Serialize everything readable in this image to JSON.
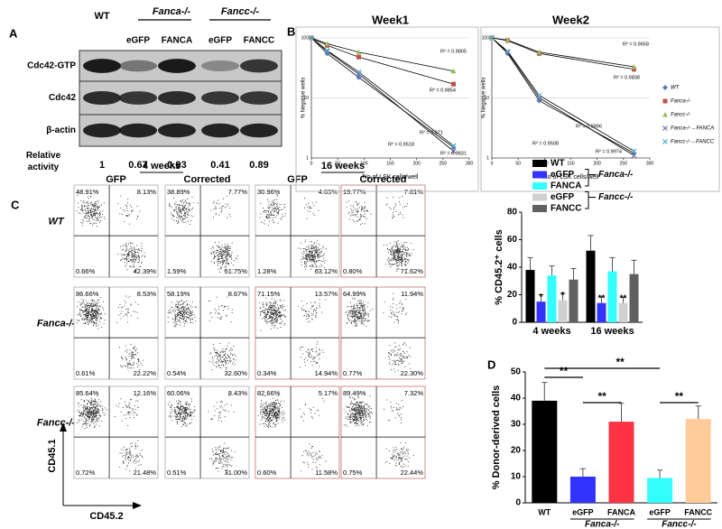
{
  "panel_labels": [
    "A",
    "B",
    "C",
    "D"
  ],
  "blot": {
    "columns": [
      "WT",
      "eGFP",
      "FANCA",
      "eGFP",
      "FANCC"
    ],
    "groups": [
      "Fanca-/-",
      "Fancc-/-"
    ],
    "rows": [
      "Cdc42-GTP",
      "Cdc42",
      "β-actin"
    ],
    "activity_label": "Relative activity",
    "activity": [
      1,
      0.67,
      0.93,
      0.41,
      0.89
    ]
  },
  "flow": {
    "time_points": [
      "4 weeks",
      "16 weeks"
    ],
    "columns": [
      "GFP",
      "Corrected",
      "GFP",
      "Corrected"
    ],
    "y_axis": "CD45.1",
    "x_axis": "CD45.2",
    "rows": [
      {
        "label": "WT",
        "cells": [
          [
            "48.91%",
            "8.13%",
            "0.66%",
            "42.39%"
          ],
          [
            "38.89%",
            "7.77%",
            "1.59%",
            "51.75%"
          ],
          [
            "30.96%",
            "4.65%",
            "1.28%",
            "63.12%"
          ],
          [
            "19.77%",
            "7.81%",
            "0.80%",
            "71.62%"
          ]
        ]
      },
      {
        "label": "Fanca-/-",
        "cells": [
          [
            "86.66%",
            "8.53%",
            "0.61%",
            "22.22%"
          ],
          [
            "58.19%",
            "8.67%",
            "0.54%",
            "32.60%"
          ],
          [
            "71.15%",
            "13.57%",
            "0.34%",
            "14.94%"
          ],
          [
            "64.99%",
            "11.94%",
            "0.77%",
            "22.30%"
          ]
        ]
      },
      {
        "label": "Fancc-/-",
        "cells": [
          [
            "85.64%",
            "12.16%",
            "0.72%",
            "21.48%"
          ],
          [
            "60.06%",
            "8.43%",
            "0.51%",
            "31.00%"
          ],
          [
            "82.66%",
            "5.17%",
            "0.60%",
            "11.58%"
          ],
          [
            "89.49%",
            "7.32%",
            "0.75%",
            "22.44%"
          ]
        ]
      }
    ]
  },
  "chart_data": [
    {
      "type": "line",
      "title": "Week1",
      "xlabel": "No of LSK cells/well",
      "ylabel": "% Negative wells",
      "log_y": true,
      "line_color": "#000000",
      "x": [
        0,
        30,
        90,
        270
      ],
      "xlim": [
        0,
        300
      ],
      "xticks": [
        0,
        50,
        100,
        150,
        200,
        250,
        300
      ],
      "ylim": [
        1,
        100
      ],
      "yticks": [
        1,
        10,
        100
      ],
      "series": [
        {
          "color": "#4f81bd",
          "marker": "diamond",
          "values": [
            100,
            55,
            22,
            1.5
          ]
        },
        {
          "color": "#c0504d",
          "marker": "square",
          "values": [
            100,
            75,
            48,
            17
          ]
        },
        {
          "color": "#9bbb59",
          "marker": "triangle",
          "values": [
            100,
            80,
            58,
            28
          ]
        },
        {
          "color": "#8064a2",
          "marker": "x",
          "values": [
            100,
            60,
            25,
            1.3
          ]
        },
        {
          "color": "#4bacc6",
          "marker": "x",
          "values": [
            100,
            62,
            27,
            1.6
          ]
        }
      ],
      "annotations": [
        "R² = 0.9805",
        "R² = 0.9854",
        "R² = 0.971",
        "R² = 0.9831",
        "R² = 0.9518"
      ]
    },
    {
      "type": "line",
      "title": "Week2",
      "xlabel": "No of LSK cells/well",
      "ylabel": "% Negative wells",
      "log_y": true,
      "line_color": "#000000",
      "legend": "right",
      "x": [
        0,
        30,
        90,
        270
      ],
      "xlim": [
        0,
        300
      ],
      "xticks": [
        0,
        50,
        100,
        150,
        200,
        250,
        300
      ],
      "ylim": [
        1,
        100
      ],
      "yticks": [
        1,
        10,
        100
      ],
      "series": [
        {
          "name": "WT",
          "color": "#4f81bd",
          "marker": "diamond",
          "values": [
            100,
            55,
            9,
            1.2
          ]
        },
        {
          "name": "Fanca-/-",
          "color": "#c0504d",
          "marker": "square",
          "values": [
            100,
            90,
            55,
            30
          ]
        },
        {
          "name": "Fancc-/-",
          "color": "#9bbb59",
          "marker": "triangle",
          "values": [
            100,
            92,
            58,
            33
          ]
        },
        {
          "name": "Fanca-/-→FANCA",
          "color": "#8064a2",
          "marker": "x",
          "values": [
            100,
            58,
            10,
            1.1
          ]
        },
        {
          "name": "Fancc-/-→FANCC",
          "color": "#4bacc6",
          "marker": "x",
          "values": [
            100,
            60,
            11,
            1.3
          ]
        }
      ],
      "annotations": [
        "R² = 0.9658",
        "R² = 0.9838",
        "R² = 0.9996",
        "R² = 0.9974",
        "R² = 0.9508"
      ]
    },
    {
      "type": "bar",
      "ylabel": "% CD45.2⁺ cells",
      "categories": [
        "4 weeks",
        "16 weeks"
      ],
      "ylim": [
        0,
        80
      ],
      "yticks": [
        0,
        20,
        40,
        60,
        80
      ],
      "legend_groups": [
        "Fanca-/-",
        "Fancc-/-"
      ],
      "series": [
        {
          "name": "WT",
          "color": "#000000",
          "values": [
            38,
            52
          ],
          "errors": [
            9,
            11
          ]
        },
        {
          "name": "eGFP",
          "color": "#3333ff",
          "values": [
            15,
            14
          ],
          "errors": [
            5,
            5
          ],
          "stars": [
            "*",
            "**"
          ]
        },
        {
          "name": "FANCA",
          "color": "#33ffff",
          "values": [
            34,
            37
          ],
          "errors": [
            7,
            10
          ]
        },
        {
          "name": "eGFP",
          "color": "#d0d0d0",
          "values": [
            16,
            14
          ],
          "errors": [
            5,
            4
          ],
          "stars": [
            "*",
            "**"
          ]
        },
        {
          "name": "FANCC",
          "color": "#606060",
          "values": [
            31,
            35
          ],
          "errors": [
            8,
            10
          ]
        }
      ]
    },
    {
      "type": "bar",
      "ylabel": "% Donor-derived cells",
      "categories": [
        "WT",
        "eGFP",
        "FANCA",
        "eGFP",
        "FANCC"
      ],
      "colors": [
        "#000000",
        "#3333ff",
        "#ff3344",
        "#33ffff",
        "#ffcc99"
      ],
      "values": [
        39,
        10,
        31,
        9.5,
        32
      ],
      "errors": [
        7,
        3,
        7,
        3,
        5
      ],
      "ylim": [
        0,
        50
      ],
      "yticks": [
        0,
        10,
        20,
        30,
        40,
        50
      ],
      "groups": [
        "Fanca-/-",
        "Fancc-/-"
      ],
      "significance": [
        "**",
        "**",
        "**",
        "**"
      ]
    }
  ]
}
